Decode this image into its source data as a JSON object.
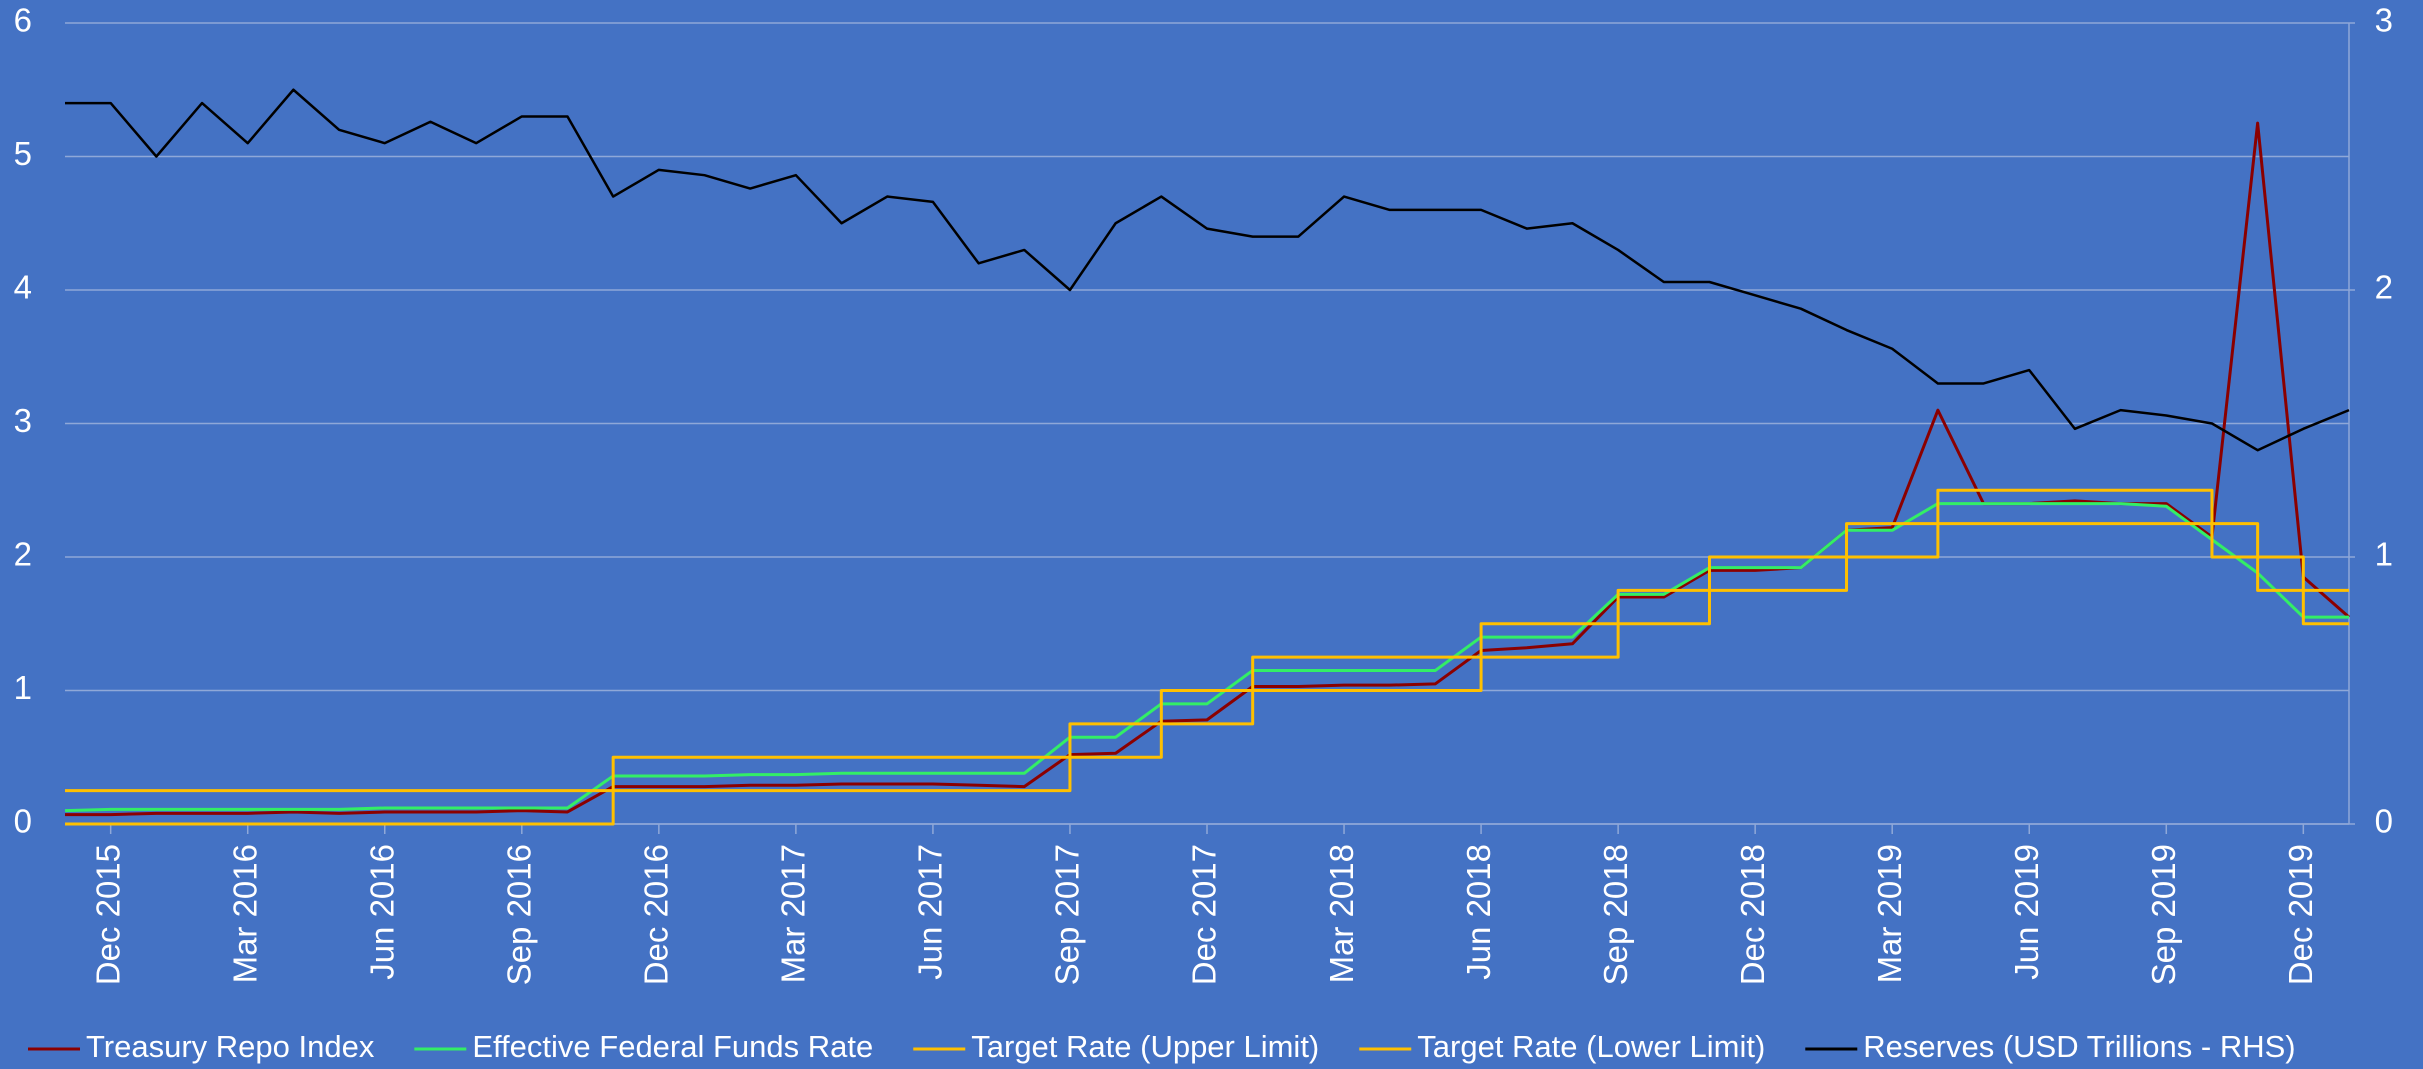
{
  "chart_data": {
    "type": "line",
    "x": [
      "2015-11",
      "2015-12",
      "2016-01",
      "2016-02",
      "2016-03",
      "2016-04",
      "2016-05",
      "2016-06",
      "2016-07",
      "2016-08",
      "2016-09",
      "2016-10",
      "2016-11",
      "2016-12",
      "2017-01",
      "2017-02",
      "2017-03",
      "2017-04",
      "2017-05",
      "2017-06",
      "2017-07",
      "2017-08",
      "2017-09",
      "2017-10",
      "2017-11",
      "2017-12",
      "2018-01",
      "2018-02",
      "2018-03",
      "2018-04",
      "2018-05",
      "2018-06",
      "2018-07",
      "2018-08",
      "2018-09",
      "2018-10",
      "2018-11",
      "2018-12",
      "2019-01",
      "2019-02",
      "2019-03",
      "2019-04",
      "2019-05",
      "2019-06",
      "2019-07",
      "2019-08",
      "2019-09",
      "2019-10",
      "2019-11",
      "2019-12",
      "2020-01"
    ],
    "xlim": [
      "2015-11",
      "2020-01"
    ],
    "xticks": [
      {
        "value": "2015-12",
        "label": "Dec 2015"
      },
      {
        "value": "2016-03",
        "label": "Mar 2016"
      },
      {
        "value": "2016-06",
        "label": "Jun 2016"
      },
      {
        "value": "2016-09",
        "label": "Sep 2016"
      },
      {
        "value": "2016-12",
        "label": "Dec 2016"
      },
      {
        "value": "2017-03",
        "label": "Mar 2017"
      },
      {
        "value": "2017-06",
        "label": "Jun 2017"
      },
      {
        "value": "2017-09",
        "label": "Sep 2017"
      },
      {
        "value": "2017-12",
        "label": "Dec 2017"
      },
      {
        "value": "2018-03",
        "label": "Mar 2018"
      },
      {
        "value": "2018-06",
        "label": "Jun 2018"
      },
      {
        "value": "2018-09",
        "label": "Sep 2018"
      },
      {
        "value": "2018-12",
        "label": "Dec 2018"
      },
      {
        "value": "2019-03",
        "label": "Mar 2019"
      },
      {
        "value": "2019-06",
        "label": "Jun 2019"
      },
      {
        "value": "2019-09",
        "label": "Sep 2019"
      },
      {
        "value": "2019-12",
        "label": "Dec 2019"
      }
    ],
    "ylim": [
      0,
      6
    ],
    "yticks": [
      0,
      1,
      2,
      3,
      4,
      5,
      6
    ],
    "y2lim": [
      0,
      3
    ],
    "y2ticks": [
      0,
      1,
      2,
      3
    ],
    "grid": true,
    "legend": "bottom",
    "series": [
      {
        "name": "Treasury Repo Index",
        "color": "#8b0000",
        "values": [
          0.07,
          0.07,
          0.08,
          0.08,
          0.08,
          0.09,
          0.08,
          0.09,
          0.09,
          0.09,
          0.1,
          0.09,
          0.28,
          0.28,
          0.28,
          0.29,
          0.29,
          0.3,
          0.3,
          0.3,
          0.29,
          0.28,
          0.52,
          0.53,
          0.77,
          0.78,
          1.03,
          1.03,
          1.04,
          1.04,
          1.05,
          1.3,
          1.32,
          1.35,
          1.7,
          1.7,
          1.9,
          1.9,
          1.92,
          2.2,
          2.22,
          3.1,
          2.4,
          2.4,
          2.42,
          2.4,
          2.4,
          2.15,
          5.25,
          1.85,
          1.55
        ]
      },
      {
        "name": "Effective Federal Funds Rate",
        "color": "#33ee66",
        "values": [
          0.1,
          0.11,
          0.11,
          0.11,
          0.11,
          0.11,
          0.11,
          0.12,
          0.12,
          0.12,
          0.12,
          0.12,
          0.36,
          0.36,
          0.36,
          0.37,
          0.37,
          0.38,
          0.38,
          0.38,
          0.38,
          0.38,
          0.65,
          0.65,
          0.9,
          0.9,
          1.15,
          1.15,
          1.15,
          1.15,
          1.15,
          1.4,
          1.4,
          1.4,
          1.72,
          1.72,
          1.92,
          1.92,
          1.92,
          2.2,
          2.2,
          2.4,
          2.4,
          2.4,
          2.4,
          2.4,
          2.38,
          2.13,
          1.88,
          1.55,
          1.55
        ]
      },
      {
        "name": "Target Rate (Upper Limit)",
        "color": "#ffc000",
        "step": true,
        "values": [
          0.25,
          0.25,
          0.25,
          0.25,
          0.25,
          0.25,
          0.25,
          0.25,
          0.25,
          0.25,
          0.25,
          0.25,
          0.5,
          0.5,
          0.5,
          0.5,
          0.5,
          0.5,
          0.5,
          0.5,
          0.5,
          0.5,
          0.75,
          0.75,
          1,
          1,
          1.25,
          1.25,
          1.25,
          1.25,
          1.25,
          1.5,
          1.5,
          1.5,
          1.75,
          1.75,
          2,
          2,
          2,
          2.25,
          2.25,
          2.5,
          2.5,
          2.5,
          2.5,
          2.5,
          2.5,
          2.25,
          2,
          1.75,
          1.75
        ]
      },
      {
        "name": "Target Rate (Lower Limit)",
        "color": "#ffc000",
        "step": true,
        "values": [
          0,
          0,
          0,
          0,
          0,
          0,
          0,
          0,
          0,
          0,
          0,
          0,
          0.25,
          0.25,
          0.25,
          0.25,
          0.25,
          0.25,
          0.25,
          0.25,
          0.25,
          0.25,
          0.5,
          0.5,
          0.75,
          0.75,
          1,
          1,
          1,
          1,
          1,
          1.25,
          1.25,
          1.25,
          1.5,
          1.5,
          1.75,
          1.75,
          1.75,
          2,
          2,
          2.25,
          2.25,
          2.25,
          2.25,
          2.25,
          2.25,
          2,
          1.75,
          1.5,
          1.5
        ]
      },
      {
        "name": "Reserves (USD Trillions - RHS)",
        "color": "#000000",
        "axis": "y2",
        "values": [
          2.7,
          2.7,
          2.5,
          2.7,
          2.55,
          2.75,
          2.6,
          2.55,
          2.63,
          2.55,
          2.65,
          2.65,
          2.35,
          2.45,
          2.43,
          2.38,
          2.43,
          2.25,
          2.35,
          2.33,
          2.1,
          2.15,
          2.0,
          2.25,
          2.35,
          2.23,
          2.2,
          2.2,
          2.35,
          2.3,
          2.3,
          2.3,
          2.23,
          2.25,
          2.15,
          2.03,
          2.03,
          1.98,
          1.93,
          1.85,
          1.78,
          1.65,
          1.65,
          1.7,
          1.48,
          1.55,
          1.53,
          1.5,
          1.4,
          1.48,
          1.55
        ]
      }
    ]
  }
}
